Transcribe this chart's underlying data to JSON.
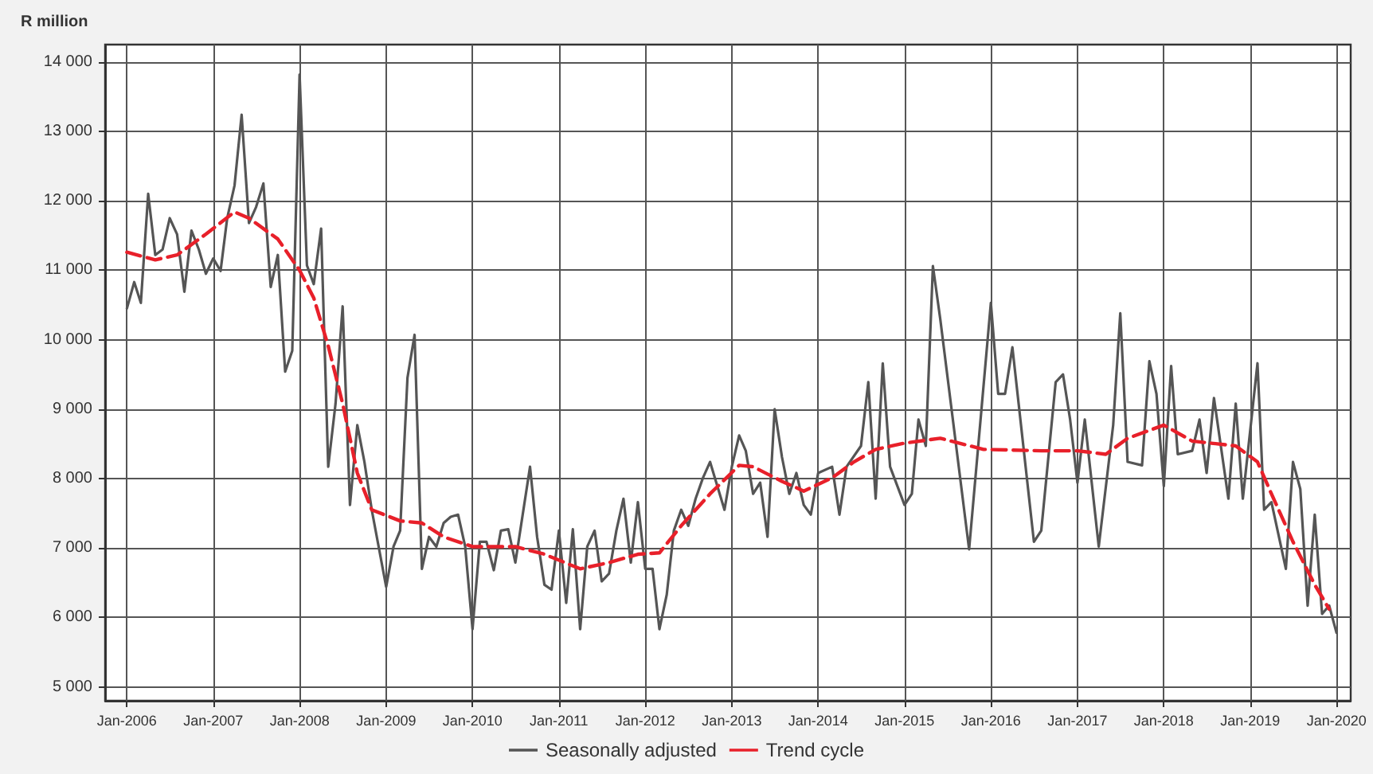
{
  "chart_data": {
    "type": "line",
    "ylabel": "R million",
    "xlim": [
      "2005-10",
      "2020-03"
    ],
    "xticks": [
      {
        "value": "2006-01",
        "label": "Jan-2006"
      },
      {
        "value": "2007-01",
        "label": "Jan-2007"
      },
      {
        "value": "2008-01",
        "label": "Jan-2008"
      },
      {
        "value": "2009-01",
        "label": "Jan-2009"
      },
      {
        "value": "2010-01",
        "label": "Jan-2010"
      },
      {
        "value": "2011-01",
        "label": "Jan-2011"
      },
      {
        "value": "2012-01",
        "label": "Jan-2012"
      },
      {
        "value": "2013-01",
        "label": "Jan-2013"
      },
      {
        "value": "2014-01",
        "label": "Jan-2014"
      },
      {
        "value": "2015-01",
        "label": "Jan-2015"
      },
      {
        "value": "2016-01",
        "label": "Jan-2016"
      },
      {
        "value": "2017-01",
        "label": "Jan-2017"
      },
      {
        "value": "2018-01",
        "label": "Jan-2018"
      },
      {
        "value": "2019-01",
        "label": "Jan-2019"
      },
      {
        "value": "2020-01",
        "label": "Jan-2020"
      }
    ],
    "ylim": [
      4800,
      14250
    ],
    "yticks": [
      {
        "value": 5000,
        "label": "5 000"
      },
      {
        "value": 6000,
        "label": "6 000"
      },
      {
        "value": 7000,
        "label": "7 000"
      },
      {
        "value": 8000,
        "label": "8 000"
      },
      {
        "value": 9000,
        "label": "9 000"
      },
      {
        "value": 10000,
        "label": "10 000"
      },
      {
        "value": 11000,
        "label": "11 000"
      },
      {
        "value": 12000,
        "label": "12 000"
      },
      {
        "value": 13000,
        "label": "13 000"
      },
      {
        "value": 14000,
        "label": "14 000"
      }
    ],
    "grid": true,
    "legend": "bottom",
    "marker": "none",
    "series": [
      {
        "name": "Seasonally adjusted",
        "color": "#555555",
        "line_style": "solid",
        "x": [
          "2006-01",
          "2006-02",
          "2006-03",
          "2006-04",
          "2006-05",
          "2006-06",
          "2006-07",
          "2006-08",
          "2006-09",
          "2006-10",
          "2006-11",
          "2006-12",
          "2007-01",
          "2007-02",
          "2007-03",
          "2007-04",
          "2007-05",
          "2007-06",
          "2007-07",
          "2007-08",
          "2007-09",
          "2007-10",
          "2007-11",
          "2007-12",
          "2008-01",
          "2008-02",
          "2008-03",
          "2008-04",
          "2008-05",
          "2008-06",
          "2008-07",
          "2008-08",
          "2008-09",
          "2008-10",
          "2008-11",
          "2009-01",
          "2009-02",
          "2009-03",
          "2009-04",
          "2009-05",
          "2009-06",
          "2009-07",
          "2009-08",
          "2009-09",
          "2009-10",
          "2009-11",
          "2009-12",
          "2010-01",
          "2010-02",
          "2010-03",
          "2010-04",
          "2010-05",
          "2010-06",
          "2010-07",
          "2010-09",
          "2010-10",
          "2010-11",
          "2010-12",
          "2011-01",
          "2011-02",
          "2011-03",
          "2011-04",
          "2011-05",
          "2011-06",
          "2011-07",
          "2011-08",
          "2011-09",
          "2011-10",
          "2011-11",
          "2011-12",
          "2012-01",
          "2012-02",
          "2012-03",
          "2012-04",
          "2012-05",
          "2012-06",
          "2012-07",
          "2012-08",
          "2012-09",
          "2012-10",
          "2012-12",
          "2013-01",
          "2013-02",
          "2013-03",
          "2013-04",
          "2013-05",
          "2013-06",
          "2013-07",
          "2013-08",
          "2013-09",
          "2013-10",
          "2013-11",
          "2013-12",
          "2014-01",
          "2014-03",
          "2014-04",
          "2014-05",
          "2014-07",
          "2014-08",
          "2014-09",
          "2014-10",
          "2014-11",
          "2015-01",
          "2015-02",
          "2015-03",
          "2015-04",
          "2015-05",
          "2015-06",
          "2015-10",
          "2016-01",
          "2016-02",
          "2016-03",
          "2016-04",
          "2016-07",
          "2016-08",
          "2016-10",
          "2016-11",
          "2016-12",
          "2017-01",
          "2017-02",
          "2017-04",
          "2017-06",
          "2017-07",
          "2017-08",
          "2017-10",
          "2017-11",
          "2017-12",
          "2018-01",
          "2018-02",
          "2018-03",
          "2018-05",
          "2018-06",
          "2018-07",
          "2018-08",
          "2018-10",
          "2018-11",
          "2018-12",
          "2019-02",
          "2019-03",
          "2019-04",
          "2019-06",
          "2019-07",
          "2019-08",
          "2019-09",
          "2019-10",
          "2019-11",
          "2019-12",
          "2020-01"
        ],
        "values": [
          10450,
          10830,
          10530,
          12100,
          11220,
          11300,
          11750,
          11520,
          10690,
          11570,
          11300,
          10950,
          11170,
          10990,
          11750,
          12220,
          13240,
          11680,
          11910,
          12250,
          10760,
          11220,
          9540,
          9840,
          13820,
          11070,
          10800,
          11600,
          8170,
          9080,
          10480,
          7620,
          8770,
          8240,
          7550,
          6440,
          7020,
          7250,
          9450,
          10070,
          6700,
          7160,
          7020,
          7360,
          7450,
          7480,
          7020,
          5830,
          7090,
          7090,
          6680,
          7250,
          7270,
          6790,
          8170,
          7160,
          6470,
          6400,
          7250,
          6210,
          7270,
          5830,
          7020,
          7250,
          6520,
          6630,
          7250,
          7710,
          6790,
          7660,
          6700,
          6700,
          5830,
          6330,
          7250,
          7550,
          7320,
          7710,
          8010,
          8240,
          7550,
          8170,
          8620,
          8400,
          7780,
          7940,
          7160,
          9000,
          8310,
          7780,
          8080,
          7620,
          7480,
          8080,
          8170,
          7480,
          8170,
          8470,
          9390,
          7710,
          9660,
          8170,
          7620,
          7780,
          8850,
          8470,
          11060,
          10300,
          6980,
          10530,
          9220,
          9220,
          9890,
          7090,
          7250,
          9390,
          9500,
          8850,
          7940,
          8850,
          7020,
          8770,
          10380,
          8240,
          8190,
          9690,
          9220,
          7890,
          9620,
          8350,
          8400,
          8850,
          8080,
          9160,
          7710,
          9080,
          7710,
          9660,
          7550,
          7660,
          6700,
          8240,
          7850,
          6170,
          7480,
          6050,
          6170,
          5780
        ]
      },
      {
        "name": "Trend cycle",
        "color": "#e8202a",
        "line_style": "dashed",
        "x": [
          "2006-01",
          "2006-05",
          "2006-08",
          "2006-12",
          "2007-04",
          "2007-06",
          "2007-10",
          "2008-01",
          "2008-03",
          "2008-05",
          "2008-07",
          "2008-09",
          "2008-11",
          "2009-03",
          "2009-06",
          "2009-09",
          "2010-01",
          "2010-02",
          "2010-07",
          "2010-11",
          "2011-04",
          "2011-08",
          "2011-12",
          "2012-03",
          "2012-06",
          "2012-10",
          "2013-02",
          "2013-04",
          "2013-08",
          "2013-11",
          "2014-03",
          "2014-06",
          "2014-09",
          "2015-01",
          "2015-06",
          "2015-12",
          "2016-08",
          "2017-01",
          "2017-05",
          "2017-08",
          "2018-01",
          "2018-05",
          "2018-11",
          "2019-02",
          "2019-04",
          "2019-07",
          "2019-10",
          "2019-12"
        ],
        "values": [
          11260,
          11150,
          11220,
          11520,
          11840,
          11750,
          11450,
          11000,
          10600,
          9910,
          9080,
          8080,
          7550,
          7390,
          7360,
          7160,
          7020,
          7020,
          7020,
          6910,
          6700,
          6790,
          6910,
          6930,
          7320,
          7780,
          8190,
          8170,
          7960,
          7820,
          8010,
          8240,
          8420,
          8510,
          8580,
          8420,
          8400,
          8400,
          8350,
          8580,
          8770,
          8540,
          8470,
          8240,
          7780,
          7090,
          6470,
          6120
        ]
      }
    ]
  }
}
